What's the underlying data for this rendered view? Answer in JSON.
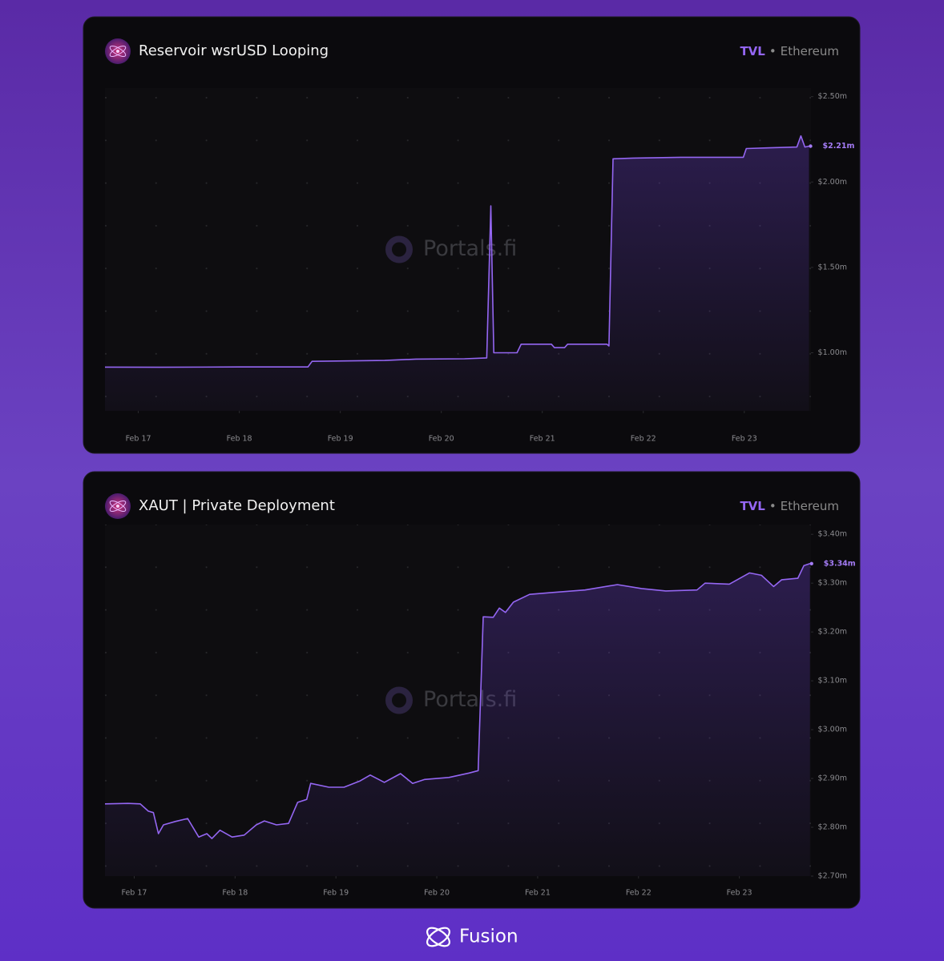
{
  "chart_data": [
    {
      "type": "line",
      "title": "Reservoir wsrUSD Looping",
      "legend": {
        "metric": "TVL",
        "separator": "•",
        "network": "Ethereum"
      },
      "watermark": "Portals.fi",
      "color": "#9466f2",
      "x": [
        16.67,
        17.21,
        18.01,
        18.68,
        18.72,
        19.44,
        19.75,
        20.23,
        20.45,
        20.49,
        20.52,
        20.75,
        20.79,
        21.09,
        21.12,
        21.22,
        21.25,
        21.64,
        21.66,
        21.7,
        21.9,
        22.37,
        22.99,
        23.02,
        23.25,
        23.52,
        23.56,
        23.6,
        23.64
      ],
      "values": [
        0.916,
        0.915,
        0.917,
        0.917,
        0.95,
        0.955,
        0.963,
        0.965,
        0.97,
        1.86,
        1.0,
        1.0,
        1.05,
        1.05,
        1.03,
        1.03,
        1.05,
        1.05,
        1.04,
        2.136,
        2.14,
        2.145,
        2.145,
        2.196,
        2.2,
        2.205,
        2.27,
        2.205,
        2.21
      ],
      "value_labels": [
        null,
        null,
        null,
        null,
        null,
        null,
        null,
        null,
        null,
        null,
        null,
        null,
        null,
        null,
        null,
        null,
        null,
        null,
        null,
        null,
        null,
        null,
        null,
        null,
        null,
        null,
        null,
        null,
        "$2.21m"
      ],
      "xlim": [
        16.67,
        23.66
      ],
      "xticks": [
        {
          "value": 17,
          "label": "Feb 17"
        },
        {
          "value": 18,
          "label": "Feb 18"
        },
        {
          "value": 19,
          "label": "Feb 19"
        },
        {
          "value": 20,
          "label": "Feb 20"
        },
        {
          "value": 21,
          "label": "Feb 21"
        },
        {
          "value": 22,
          "label": "Feb 22"
        },
        {
          "value": 23,
          "label": "Feb 23"
        }
      ],
      "ylim": [
        0.66,
        2.55
      ],
      "yticks": [
        {
          "value": 1.0,
          "label": "$1.00m"
        },
        {
          "value": 1.5,
          "label": "$1.50m"
        },
        {
          "value": 2.0,
          "label": "$2.00m"
        },
        {
          "value": 2.5,
          "label": "$2.50m"
        }
      ]
    },
    {
      "type": "line",
      "title": "XAUT | Private Deployment",
      "legend": {
        "metric": "TVL",
        "separator": "•",
        "network": "Ethereum"
      },
      "watermark": "Portals.fi",
      "color": "#9466f2",
      "x": [
        16.71,
        16.94,
        17.06,
        17.14,
        17.19,
        17.24,
        17.29,
        17.41,
        17.53,
        17.64,
        17.72,
        17.77,
        17.85,
        17.97,
        18.09,
        18.21,
        18.29,
        18.41,
        18.53,
        18.62,
        18.71,
        18.75,
        18.93,
        19.08,
        19.24,
        19.34,
        19.48,
        19.64,
        19.76,
        19.88,
        20.12,
        20.32,
        20.41,
        20.46,
        20.56,
        20.62,
        20.68,
        20.76,
        20.92,
        21.15,
        21.47,
        21.79,
        22.03,
        22.27,
        22.58,
        22.66,
        22.9,
        23.1,
        23.22,
        23.34,
        23.42,
        23.58,
        23.64,
        23.7
      ],
      "values": [
        2.848,
        2.849,
        2.848,
        2.833,
        2.83,
        2.787,
        2.805,
        2.812,
        2.818,
        2.78,
        2.787,
        2.777,
        2.794,
        2.78,
        2.784,
        2.805,
        2.813,
        2.805,
        2.808,
        2.851,
        2.857,
        2.89,
        2.882,
        2.882,
        2.895,
        2.907,
        2.892,
        2.91,
        2.89,
        2.898,
        2.902,
        2.911,
        2.916,
        3.231,
        3.23,
        3.249,
        3.24,
        3.261,
        3.277,
        3.281,
        3.286,
        3.297,
        3.289,
        3.284,
        3.286,
        3.3,
        3.298,
        3.321,
        3.316,
        3.293,
        3.307,
        3.31,
        3.336,
        3.34
      ],
      "value_labels": [
        null,
        null,
        null,
        null,
        null,
        null,
        null,
        null,
        null,
        null,
        null,
        null,
        null,
        null,
        null,
        null,
        null,
        null,
        null,
        null,
        null,
        null,
        null,
        null,
        null,
        null,
        null,
        null,
        null,
        null,
        null,
        null,
        null,
        null,
        null,
        null,
        null,
        null,
        null,
        null,
        null,
        null,
        null,
        null,
        null,
        null,
        null,
        null,
        null,
        null,
        null,
        null,
        null,
        "$3.34m"
      ],
      "xlim": [
        16.71,
        23.71
      ],
      "xticks": [
        {
          "value": 17,
          "label": "Feb 17"
        },
        {
          "value": 18,
          "label": "Feb 18"
        },
        {
          "value": 19,
          "label": "Feb 19"
        },
        {
          "value": 20,
          "label": "Feb 20"
        },
        {
          "value": 21,
          "label": "Feb 21"
        },
        {
          "value": 22,
          "label": "Feb 22"
        },
        {
          "value": 23,
          "label": "Feb 23"
        }
      ],
      "ylim": [
        2.7,
        3.42
      ],
      "yticks": [
        {
          "value": 2.7,
          "label": "$2.70m"
        },
        {
          "value": 2.8,
          "label": "$2.80m"
        },
        {
          "value": 2.9,
          "label": "$2.90m"
        },
        {
          "value": 3.0,
          "label": "$3.00m"
        },
        {
          "value": 3.1,
          "label": "$3.10m"
        },
        {
          "value": 3.2,
          "label": "$3.20m"
        },
        {
          "value": 3.3,
          "label": "$3.30m"
        },
        {
          "value": 3.4,
          "label": "$3.40m"
        }
      ]
    }
  ],
  "footer": {
    "brand": "Fusion"
  }
}
